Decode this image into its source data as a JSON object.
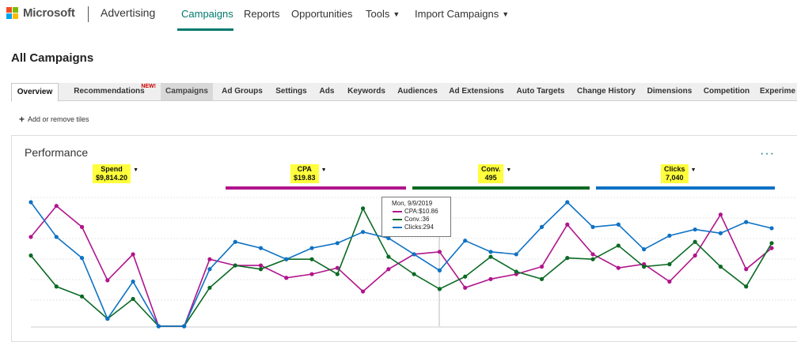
{
  "header": {
    "brand": "Microsoft",
    "product": "Advertising",
    "nav": [
      "Campaigns",
      "Reports",
      "Opportunities",
      "Tools",
      "Import Campaigns"
    ]
  },
  "page": {
    "title": "All Campaigns"
  },
  "tabs": {
    "items": [
      "Overview",
      "Recommendations",
      "Campaigns",
      "Ad Groups",
      "Settings",
      "Ads",
      "Keywords",
      "Audiences",
      "Ad Extensions",
      "Auto Targets",
      "Change History",
      "Dimensions",
      "Competition",
      "Experime"
    ],
    "new_badge": "NEW!",
    "selected": "Overview"
  },
  "tiles": {
    "add_label": "Add or remove tiles"
  },
  "performance": {
    "title": "Performance",
    "more": "···",
    "metrics": [
      {
        "name": "Spend",
        "value": "$9,814.20",
        "color": "#ffffff"
      },
      {
        "name": "CPA",
        "value": "$19.83",
        "color": "#b0148c"
      },
      {
        "name": "Conv.",
        "value": "495",
        "color": "#0b6a24"
      },
      {
        "name": "Clicks",
        "value": "7,040",
        "color": "#0e72c4"
      }
    ],
    "highlight_color": "#ffff3b",
    "tooltip": {
      "date": "Mon, 9/9/2019",
      "rows": [
        {
          "label": "CPA:$10.86",
          "color": "#b0148c"
        },
        {
          "label": "Conv.:36",
          "color": "#0b6a24"
        },
        {
          "label": "Clicks:294",
          "color": "#0e72c4"
        }
      ]
    }
  },
  "chart_data": {
    "type": "line",
    "x": [
      1,
      2,
      3,
      4,
      5,
      6,
      7,
      8,
      9,
      10,
      11,
      12,
      13,
      14,
      15,
      16,
      17,
      18,
      19,
      20,
      21,
      22,
      23,
      24,
      25,
      26,
      27,
      28,
      29,
      30
    ],
    "ylim": [
      0,
      100
    ],
    "series": [
      {
        "name": "CPA",
        "color": "#b0148c",
        "values": [
          72,
          97,
          80,
          37,
          58,
          0,
          0,
          54,
          49,
          49,
          39,
          42,
          47,
          28,
          46,
          58,
          60,
          31,
          38,
          42,
          48,
          82,
          58,
          47,
          50,
          36,
          57,
          90,
          46,
          63
        ]
      },
      {
        "name": "Conv.",
        "color": "#0b6a24",
        "values": [
          57,
          32,
          24,
          6,
          22,
          0,
          0,
          31,
          49,
          46,
          54,
          54,
          42,
          95,
          56,
          42,
          30,
          40,
          56,
          44,
          38,
          55,
          54,
          65,
          48,
          50,
          68,
          48,
          32,
          67
        ]
      },
      {
        "name": "Clicks",
        "color": "#0e72c4",
        "values": [
          100,
          72,
          55,
          6,
          36,
          0,
          0,
          46,
          68,
          63,
          54,
          63,
          67,
          76,
          71,
          58,
          45,
          69,
          60,
          58,
          80,
          100,
          80,
          82,
          62,
          73,
          78,
          75,
          84,
          79
        ]
      }
    ]
  }
}
